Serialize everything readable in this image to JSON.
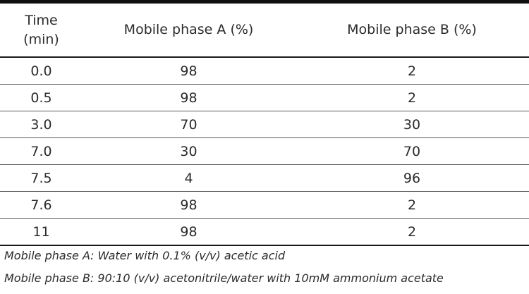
{
  "table": {
    "headers": {
      "time_line1": "Time",
      "time_line2": "(min)",
      "phase_a": "Mobile phase A (%)",
      "phase_b": "Mobile phase B (%)"
    },
    "rows": [
      {
        "time": "0.0",
        "a": "98",
        "b": "2"
      },
      {
        "time": "0.5",
        "a": "98",
        "b": "2"
      },
      {
        "time": "3.0",
        "a": "70",
        "b": "30"
      },
      {
        "time": "7.0",
        "a": "30",
        "b": "70"
      },
      {
        "time": "7.5",
        "a": "4",
        "b": "96"
      },
      {
        "time": "7.6",
        "a": "98",
        "b": "2"
      },
      {
        "time": "11",
        "a": "98",
        "b": "2"
      }
    ]
  },
  "footnotes": {
    "phase_a_note": "Mobile phase A: Water with 0.1% (v/v) acetic acid",
    "phase_b_note": "Mobile phase B: 90:10 (v/v) acetonitrile/water with 10mM ammonium acetate"
  }
}
